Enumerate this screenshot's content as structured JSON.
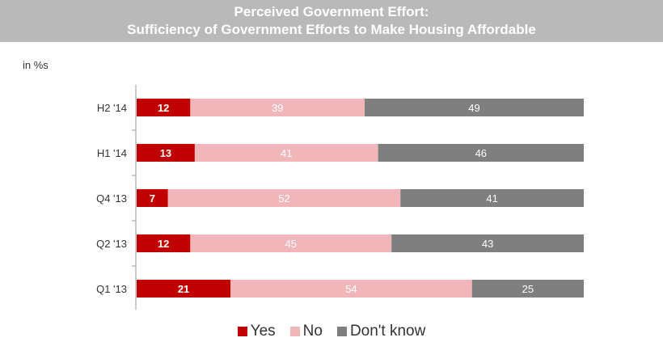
{
  "chart_data": {
    "type": "bar",
    "orientation": "horizontal",
    "stacked": true,
    "title": "Perceived Government Effort:",
    "subtitle": "Sufficiency of Government Efforts to Make Housing Affordable",
    "unit_label": "in %s",
    "categories": [
      "H2 '14",
      "H1 '14",
      "Q4 '13",
      "Q2 '13",
      "Q1 '13"
    ],
    "series": [
      {
        "name": "Yes",
        "color": "#c00000",
        "values": [
          12,
          13,
          7,
          12,
          21
        ]
      },
      {
        "name": "No",
        "color": "#f0b6b9",
        "values": [
          39,
          41,
          52,
          45,
          54
        ]
      },
      {
        "name": "Don't know",
        "color": "#7f7f7f",
        "values": [
          49,
          46,
          41,
          43,
          25
        ]
      }
    ],
    "xlim": [
      0,
      100
    ],
    "grid": false,
    "legend_position": "bottom"
  }
}
